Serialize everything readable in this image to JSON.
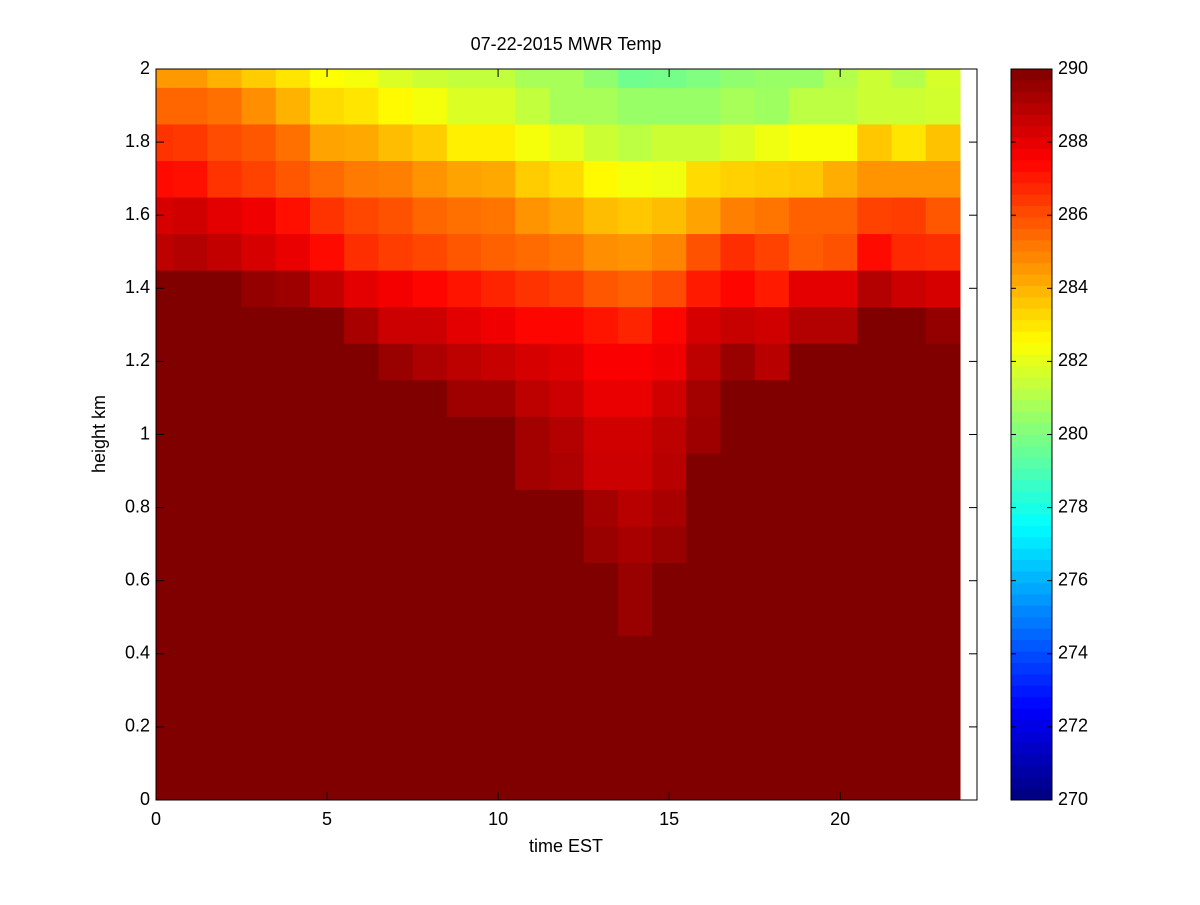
{
  "chart_data": {
    "type": "heatmap",
    "title": "07-22-2015 MWR Temp",
    "xlabel": "time EST",
    "ylabel": "height km",
    "x": [
      0,
      1,
      2,
      3,
      4,
      5,
      6,
      7,
      8,
      9,
      10,
      11,
      12,
      13,
      14,
      15,
      16,
      17,
      18,
      19,
      20,
      21,
      22,
      23
    ],
    "y": [
      0,
      0.1,
      0.2,
      0.3,
      0.4,
      0.5,
      0.6,
      0.7,
      0.8,
      0.9,
      1.0,
      1.1,
      1.2,
      1.3,
      1.4,
      1.5,
      1.6,
      1.7,
      1.8,
      1.9,
      2.0
    ],
    "z": [
      [
        290,
        290,
        290,
        290,
        290,
        290,
        290,
        290,
        290,
        290,
        290,
        290,
        290,
        290,
        290,
        290,
        290,
        290,
        290,
        290,
        290,
        290,
        290,
        290
      ],
      [
        290,
        290,
        290,
        290,
        290,
        290,
        290,
        290,
        290,
        290,
        290,
        290,
        290,
        290,
        290,
        290,
        290,
        290,
        290,
        290,
        290,
        290,
        290,
        290
      ],
      [
        290,
        290,
        290,
        290,
        290,
        290,
        290,
        290,
        290,
        290,
        290,
        290,
        290,
        290,
        290,
        290,
        290,
        290,
        290,
        290,
        290,
        290,
        290,
        290
      ],
      [
        290,
        290,
        290,
        290,
        290,
        290,
        290,
        290,
        290,
        290,
        290,
        290,
        290,
        290,
        290,
        290,
        290,
        290,
        290,
        290,
        290,
        290,
        290,
        290
      ],
      [
        290,
        290,
        290,
        290,
        290,
        290,
        290,
        290,
        290,
        290,
        290,
        290,
        290,
        290,
        290,
        290,
        290,
        290,
        290,
        290,
        290,
        290,
        290,
        290
      ],
      [
        290,
        290,
        290,
        290,
        290,
        290,
        290,
        290,
        290,
        290,
        290,
        290,
        290,
        290,
        289.5,
        290,
        290,
        290,
        290,
        290,
        290,
        290,
        290,
        290
      ],
      [
        290,
        290,
        290,
        290,
        290,
        290,
        290,
        290,
        290,
        290,
        290,
        290,
        290,
        290,
        289.5,
        290,
        290,
        290,
        290,
        290,
        290,
        290,
        290,
        290
      ],
      [
        290,
        290,
        290,
        290,
        290,
        290,
        290,
        290,
        290,
        290,
        290,
        290,
        290,
        289.5,
        289.2,
        289.5,
        290,
        290,
        290,
        290,
        290,
        290,
        290,
        290
      ],
      [
        290,
        290,
        290,
        290,
        290,
        290,
        290,
        290,
        290,
        290,
        290,
        290,
        290,
        289.3,
        288.9,
        289.2,
        290,
        290,
        290,
        290,
        290,
        290,
        290,
        290
      ],
      [
        290,
        290,
        290,
        290,
        290,
        290,
        290,
        290,
        290,
        290,
        290,
        289.3,
        289.1,
        288.5,
        288.5,
        288.9,
        290,
        290,
        290,
        290,
        290,
        290,
        290,
        290
      ],
      [
        290,
        290,
        290,
        290,
        290,
        290,
        290,
        290,
        290,
        290,
        290,
        289.3,
        289,
        288.4,
        288.4,
        288.8,
        289.4,
        290,
        290,
        290,
        290,
        290,
        290,
        290
      ],
      [
        290,
        290,
        290,
        290,
        290,
        290,
        290,
        290,
        290,
        289.4,
        289.4,
        288.8,
        288.5,
        287.9,
        287.9,
        288.4,
        289.3,
        290,
        290,
        290,
        290,
        290,
        290,
        290
      ],
      [
        290,
        290,
        290,
        290,
        290,
        290,
        290,
        289.5,
        289.1,
        288.8,
        288.6,
        288.3,
        288.1,
        287.6,
        287.6,
        287.8,
        288.8,
        289.5,
        288.9,
        290,
        290,
        290,
        290,
        290
      ],
      [
        290,
        290,
        290,
        290,
        290,
        290,
        289.2,
        288.5,
        288.5,
        288,
        287.8,
        287.4,
        287.4,
        287.1,
        286.8,
        287.4,
        288.3,
        288.6,
        288.4,
        289,
        289,
        290,
        290,
        289.6
      ],
      [
        290,
        290,
        290,
        289.6,
        289.4,
        288.7,
        288,
        287.7,
        287.4,
        287.1,
        286.8,
        286.5,
        286.3,
        285.8,
        285.6,
        286,
        287,
        287.4,
        287,
        288,
        288,
        289,
        288.5,
        288.3
      ],
      [
        288.8,
        289,
        288.7,
        288.3,
        287.9,
        287.3,
        286.6,
        286.3,
        286.1,
        285.8,
        285.6,
        285.4,
        285.2,
        284.7,
        284.6,
        284.9,
        285.9,
        286.6,
        286.2,
        285.7,
        285.9,
        287.3,
        286.7,
        286.6
      ],
      [
        288.3,
        288.4,
        288,
        287.8,
        287.2,
        286.5,
        286.1,
        285.9,
        285.5,
        285.3,
        285.2,
        284.6,
        284.3,
        283.8,
        283.6,
        283.8,
        284.3,
        285,
        285.2,
        285.6,
        285.6,
        286.2,
        286.3,
        285.8
      ],
      [
        287.3,
        287.2,
        286.5,
        286.2,
        285.8,
        285.4,
        285.1,
        285,
        284.6,
        284.3,
        284.2,
        283.5,
        283.2,
        282.6,
        282.3,
        282.2,
        283.2,
        283.4,
        283.5,
        283.6,
        284.1,
        284.6,
        284.6,
        284.6
      ],
      [
        286.5,
        286.4,
        286,
        285.8,
        285.3,
        284.3,
        284.2,
        283.8,
        283.5,
        282.8,
        282.8,
        282.3,
        282,
        281.5,
        281.2,
        281.5,
        281.5,
        281.8,
        282.2,
        282.4,
        282.4,
        283.6,
        283,
        283.7
      ],
      [
        285.5,
        285.5,
        285.3,
        284.7,
        284,
        283.2,
        283,
        282.6,
        282.3,
        281.8,
        281.8,
        281.3,
        280.8,
        280.8,
        280.5,
        280.5,
        280.5,
        280.8,
        280.6,
        281.2,
        281.2,
        281.5,
        281.5,
        281.6
      ],
      [
        284.5,
        284.5,
        284,
        283.5,
        283,
        282.5,
        282.3,
        281.8,
        281.5,
        281.3,
        281.3,
        280.8,
        280.8,
        280.3,
        279.7,
        279.8,
        280,
        280.3,
        280.5,
        280.5,
        281,
        281.5,
        281,
        281.7
      ]
    ],
    "xlim": [
      0,
      24
    ],
    "ylim": [
      0,
      2
    ],
    "xticks": [
      0,
      5,
      10,
      15,
      20
    ],
    "yticks": [
      0,
      0.2,
      0.4,
      0.6,
      0.8,
      1,
      1.2,
      1.4,
      1.6,
      1.8,
      2
    ],
    "colormap": "jet",
    "clim": [
      270,
      290
    ],
    "colorbar_ticks": [
      270,
      272,
      274,
      276,
      278,
      280,
      282,
      284,
      286,
      288,
      290
    ]
  }
}
